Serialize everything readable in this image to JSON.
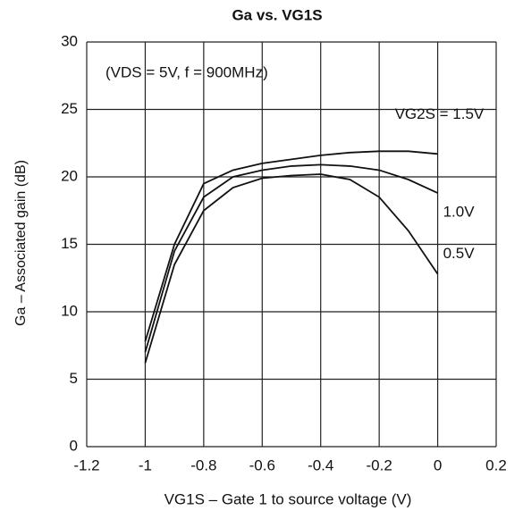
{
  "chart_data": {
    "type": "line",
    "title": "Ga vs. VG1S",
    "annotation": "(VDS = 5V, f = 900MHz)",
    "x_label": "VG1S – Gate 1 to source voltage   (V)",
    "y_label": "Ga – Associated gain   (dB)",
    "x": [
      -1,
      -0.9,
      -0.8,
      -0.7,
      -0.6,
      -0.5,
      -0.4,
      -0.3,
      -0.2,
      -0.1,
      0
    ],
    "series": [
      {
        "name": "VG2S = 1.5V",
        "color": "#111111",
        "values": [
          7.8,
          15,
          19.5,
          20.5,
          21,
          21.3,
          21.6,
          21.8,
          21.9,
          21.9,
          21.7
        ]
      },
      {
        "name": "1.0V",
        "color": "#111111",
        "values": [
          7,
          14.5,
          18.5,
          20,
          20.5,
          20.8,
          20.9,
          20.8,
          20.5,
          19.8,
          18.8
        ]
      },
      {
        "name": "0.5V",
        "color": "#111111",
        "values": [
          6.2,
          13.5,
          17.5,
          19.2,
          19.9,
          20.1,
          20.2,
          19.8,
          18.5,
          16,
          12.8
        ]
      }
    ],
    "xlim": [
      -1.2,
      0.2
    ],
    "xticks": [
      -1.2,
      -1,
      -0.8,
      -0.6,
      -0.4,
      -0.2,
      0,
      0.2
    ],
    "ylim": [
      0,
      30
    ],
    "yticks": [
      0,
      5,
      10,
      15,
      20,
      25,
      30
    ],
    "grid": true
  }
}
